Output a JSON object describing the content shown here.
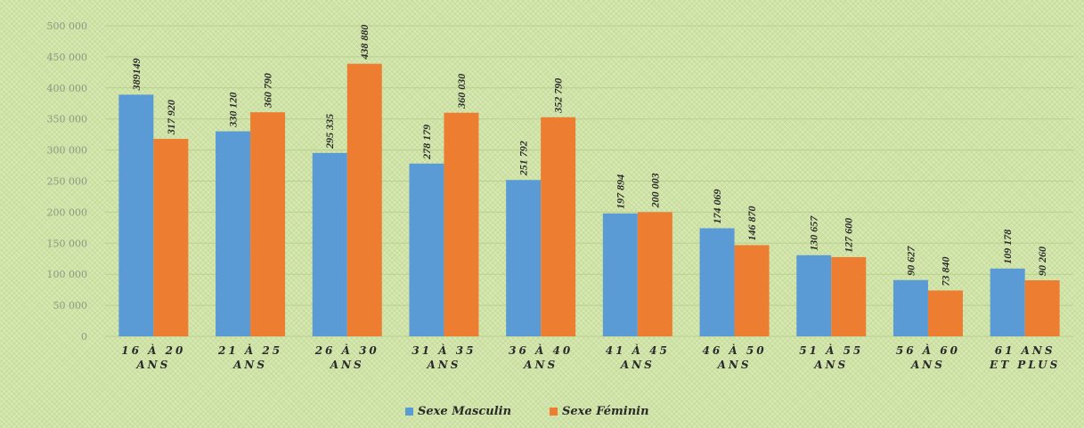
{
  "chart_data": {
    "type": "bar",
    "title": "",
    "xlabel": "",
    "ylabel": "",
    "ylim": [
      0,
      500000
    ],
    "yticks": [
      0,
      50000,
      100000,
      150000,
      200000,
      250000,
      300000,
      350000,
      400000,
      450000,
      500000
    ],
    "ytick_labels": [
      "0",
      "50 000",
      "100 000",
      "150 000",
      "200 000",
      "250 000",
      "300 000",
      "350 000",
      "400 000",
      "450 000",
      "500 000"
    ],
    "categories": [
      "16 À 20 ANS",
      "21 À 25 ANS",
      "26 À 30 ANS",
      "31 À 35 ANS",
      "36 À 40 ANS",
      "41 À 45 ANS",
      "46 À 50 ANS",
      "51 À 55 ANS",
      "56 À 60 ANS",
      "61 ANS ET PLUS"
    ],
    "category_lines": [
      [
        "16 À 20",
        "ANS"
      ],
      [
        "21 À 25",
        "ANS"
      ],
      [
        "26 À 30",
        "ANS"
      ],
      [
        "31 À 35",
        "ANS"
      ],
      [
        "36 À 40",
        "ANS"
      ],
      [
        "41 À 45",
        "ANS"
      ],
      [
        "46 À 50",
        "ANS"
      ],
      [
        "51 À 55",
        "ANS"
      ],
      [
        "56 À 60",
        "ANS"
      ],
      [
        "61 ANS",
        "ET PLUS"
      ]
    ],
    "series": [
      {
        "name": "Sexe Masculin",
        "color": "#5b9bd5",
        "values": [
          389149,
          330120,
          295335,
          278179,
          251792,
          197894,
          174069,
          130657,
          90627,
          109178
        ],
        "labels": [
          "389149",
          "330 120",
          "295 335",
          "278 179",
          "251 792",
          "197 894",
          "174 069",
          "130 657",
          "90 627",
          "109 178"
        ]
      },
      {
        "name": "Sexe Féminin",
        "color": "#ed7d31",
        "values": [
          317920,
          360790,
          438880,
          360030,
          352790,
          200003,
          146870,
          127600,
          73840,
          90260
        ],
        "labels": [
          "317 920",
          "360 790",
          "438 880",
          "360 030",
          "352 790",
          "200 003",
          "146 870",
          "127 600",
          "73 840",
          "90 260"
        ]
      }
    ],
    "grid": true,
    "legend": "bottom-center"
  }
}
